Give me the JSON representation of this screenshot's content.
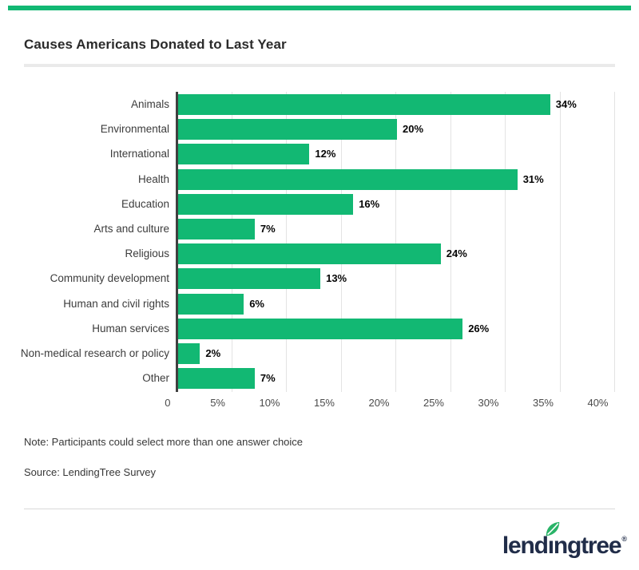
{
  "header": {
    "title": "Causes Americans Donated to Last Year"
  },
  "chart_data": {
    "type": "bar",
    "orientation": "horizontal",
    "title": "Causes Americans Donated to Last Year",
    "categories": [
      "Animals",
      "Environmental",
      "International",
      "Health",
      "Education",
      "Arts and culture",
      "Religious",
      "Community development",
      "Human and civil rights",
      "Human services",
      "Non-medical research or policy",
      "Other"
    ],
    "values": [
      34,
      20,
      12,
      31,
      16,
      7,
      24,
      13,
      6,
      26,
      2,
      7
    ],
    "value_labels": [
      "34%",
      "20%",
      "12%",
      "31%",
      "16%",
      "7%",
      "24%",
      "13%",
      "6%",
      "26%",
      "2%",
      "7%"
    ],
    "x_ticks": [
      {
        "value": 0,
        "label": "0"
      },
      {
        "value": 5,
        "label": "5%"
      },
      {
        "value": 10,
        "label": "10%"
      },
      {
        "value": 15,
        "label": "15%"
      },
      {
        "value": 20,
        "label": "20%"
      },
      {
        "value": 25,
        "label": "25%"
      },
      {
        "value": 30,
        "label": "30%"
      },
      {
        "value": 35,
        "label": "35%"
      },
      {
        "value": 40,
        "label": "40%"
      }
    ],
    "xlim": [
      0,
      40
    ],
    "xlabel": "",
    "ylabel": "",
    "grid": true,
    "legend": false,
    "bar_color": "#12b873"
  },
  "footer": {
    "note": "Note: Participants could select more than one answer choice",
    "source": "Source: LendingTree Survey"
  },
  "logo": {
    "part1": "lend",
    "dotless_i": "ı",
    "part2": "ngtree",
    "registered": "®"
  },
  "colors": {
    "accent_green": "#12b873",
    "leaf_green": "#2ab468",
    "logo_navy": "#212d49",
    "axis": "#404040",
    "gridline": "#e3e3e3",
    "title_text": "#2b2b2b",
    "divider": "#eaeaea"
  }
}
